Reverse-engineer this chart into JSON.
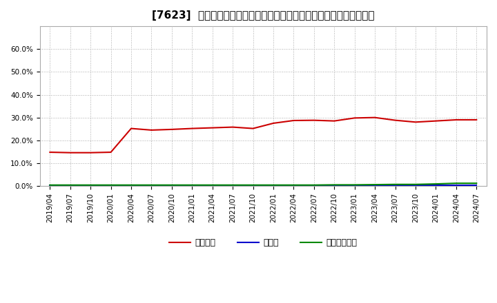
{
  "title": "[7623]  自己資本、のれん、繰延税金資産の総資産に対する比率の推移",
  "ylim": [
    0.0,
    0.7
  ],
  "yticks": [
    0.0,
    0.1,
    0.2,
    0.3,
    0.4,
    0.5,
    0.6
  ],
  "ytick_labels": [
    "0.0%",
    "10.0%",
    "20.0%",
    "30.0%",
    "40.0%",
    "50.0%",
    "60.0%"
  ],
  "x_labels": [
    "2019/04",
    "2019/07",
    "2019/10",
    "2020/01",
    "2020/04",
    "2020/07",
    "2020/10",
    "2021/01",
    "2021/04",
    "2021/07",
    "2021/10",
    "2022/01",
    "2022/04",
    "2022/07",
    "2022/10",
    "2023/01",
    "2023/04",
    "2023/07",
    "2023/10",
    "2024/01",
    "2024/04",
    "2024/07"
  ],
  "series": {
    "自己資本": {
      "color": "#cc0000",
      "values": [
        0.148,
        0.146,
        0.146,
        0.148,
        0.252,
        0.245,
        0.248,
        0.252,
        0.255,
        0.258,
        0.252,
        0.275,
        0.287,
        0.288,
        0.285,
        0.298,
        0.3,
        0.288,
        0.28,
        0.285,
        0.29,
        0.29
      ]
    },
    "のれん": {
      "color": "#0000cc",
      "values": [
        0.003,
        0.003,
        0.003,
        0.003,
        0.003,
        0.003,
        0.003,
        0.003,
        0.003,
        0.003,
        0.003,
        0.003,
        0.003,
        0.003,
        0.003,
        0.003,
        0.003,
        0.003,
        0.003,
        0.003,
        0.003,
        0.003
      ]
    },
    "繰延税金資産": {
      "color": "#008800",
      "values": [
        0.004,
        0.004,
        0.004,
        0.004,
        0.004,
        0.004,
        0.004,
        0.004,
        0.004,
        0.004,
        0.004,
        0.004,
        0.004,
        0.004,
        0.005,
        0.005,
        0.006,
        0.007,
        0.007,
        0.009,
        0.012,
        0.012
      ]
    }
  },
  "legend_order": [
    "自己資本",
    "のれん",
    "繰延税金資産"
  ],
  "bg_color": "#ffffff",
  "plot_bg_color": "#ffffff",
  "grid_color": "#aaaaaa",
  "title_fontsize": 11,
  "tick_fontsize": 7.5,
  "legend_fontsize": 9
}
